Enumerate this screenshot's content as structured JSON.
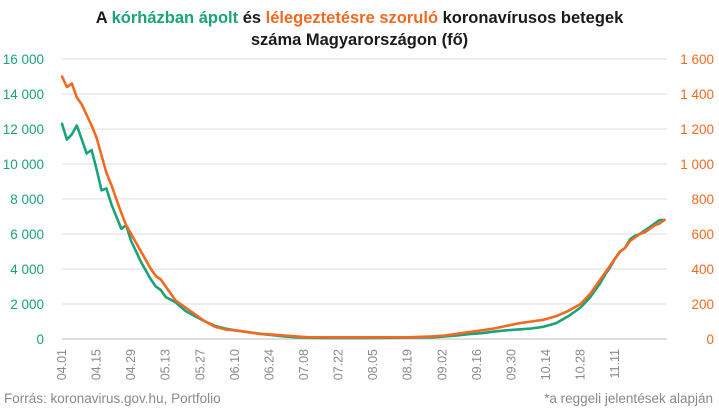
{
  "title": {
    "part1": "A ",
    "green_phrase": "kórházban ápolt",
    "part2": " és ",
    "orange_phrase": "lélegeztetésre szoruló",
    "part3": " koronavírusos betegek",
    "line2": "száma Magyarországon  (fő)"
  },
  "footer": {
    "source": "Forrás: koronavirus.gov.hu, Portfolio",
    "note": "*a reggeli jelentések alapján"
  },
  "colors": {
    "hospitalized": "#1aa37a",
    "ventilated": "#f26a21",
    "grid": "#dcdcdc"
  },
  "chart_data": {
    "type": "line",
    "x_tick_labels": [
      "04.01",
      "04.15",
      "04.29",
      "05.13",
      "05.27",
      "06.10",
      "06.24",
      "07.08",
      "07.22",
      "08.05",
      "08.19",
      "09.02",
      "09.16",
      "09.30",
      "10.14",
      "10.28",
      "11.11"
    ],
    "x_tick_days": [
      0,
      14,
      28,
      42,
      56,
      70,
      84,
      98,
      112,
      126,
      140,
      154,
      168,
      182,
      196,
      210,
      224
    ],
    "x_unit": "days after 04.01",
    "xlim": [
      0,
      245
    ],
    "left_axis": {
      "ylim": [
        0,
        16000
      ],
      "tick_labels": [
        "0",
        "2 000",
        "4 000",
        "6 000",
        "8 000",
        "10 000",
        "12 000",
        "14 000",
        "16 000"
      ]
    },
    "right_axis": {
      "ylim": [
        0,
        1600
      ],
      "tick_labels": [
        "0",
        "200",
        "400",
        "600",
        "800",
        "1 000",
        "1 200",
        "1 400",
        "1 600"
      ]
    },
    "grid": "horizontal",
    "series": [
      {
        "name": "kórházban ápolt",
        "axis": "left",
        "x": [
          0,
          2,
          4,
          6,
          8,
          10,
          12,
          14,
          16,
          18,
          20,
          22,
          24,
          26,
          28,
          30,
          32,
          34,
          36,
          38,
          40,
          42,
          46,
          50,
          54,
          58,
          62,
          66,
          70,
          75,
          80,
          85,
          90,
          95,
          100,
          110,
          120,
          130,
          140,
          150,
          155,
          160,
          165,
          170,
          175,
          180,
          185,
          190,
          195,
          200,
          205,
          210,
          212,
          214,
          216,
          218,
          220,
          222,
          224,
          226,
          228,
          230,
          232,
          234,
          236,
          238,
          240,
          242,
          244
        ],
        "values": [
          12300,
          11400,
          11700,
          12200,
          11400,
          10600,
          10800,
          9700,
          8500,
          8600,
          7700,
          7000,
          6300,
          6500,
          5600,
          5000,
          4400,
          3900,
          3400,
          3000,
          2800,
          2400,
          2100,
          1600,
          1300,
          1000,
          750,
          600,
          500,
          400,
          300,
          220,
          150,
          100,
          70,
          50,
          50,
          60,
          80,
          100,
          150,
          200,
          280,
          330,
          420,
          500,
          550,
          600,
          700,
          900,
          1300,
          1800,
          2100,
          2400,
          2800,
          3200,
          3700,
          4100,
          4600,
          5000,
          5200,
          5700,
          5900,
          6000,
          6200,
          6400,
          6600,
          6800,
          6800
        ]
      },
      {
        "name": "lélegeztetésre szoruló",
        "axis": "right",
        "x": [
          0,
          2,
          4,
          6,
          8,
          10,
          12,
          14,
          16,
          18,
          20,
          22,
          24,
          26,
          28,
          30,
          32,
          34,
          36,
          38,
          40,
          42,
          46,
          50,
          54,
          58,
          62,
          66,
          70,
          75,
          80,
          85,
          90,
          95,
          100,
          110,
          120,
          130,
          140,
          150,
          155,
          160,
          165,
          170,
          175,
          180,
          185,
          190,
          195,
          200,
          205,
          210,
          212,
          214,
          216,
          218,
          220,
          222,
          224,
          226,
          228,
          230,
          232,
          234,
          236,
          238,
          240,
          242,
          244
        ],
        "values": [
          1500,
          1440,
          1460,
          1380,
          1340,
          1280,
          1220,
          1150,
          1050,
          950,
          880,
          800,
          720,
          650,
          600,
          550,
          500,
          450,
          400,
          360,
          340,
          300,
          220,
          180,
          140,
          100,
          70,
          55,
          50,
          40,
          30,
          25,
          20,
          15,
          10,
          10,
          10,
          10,
          10,
          15,
          20,
          30,
          40,
          50,
          60,
          75,
          90,
          100,
          110,
          130,
          160,
          200,
          230,
          260,
          300,
          340,
          380,
          420,
          460,
          500,
          520,
          560,
          580,
          600,
          610,
          630,
          650,
          660,
          680
        ]
      }
    ]
  }
}
